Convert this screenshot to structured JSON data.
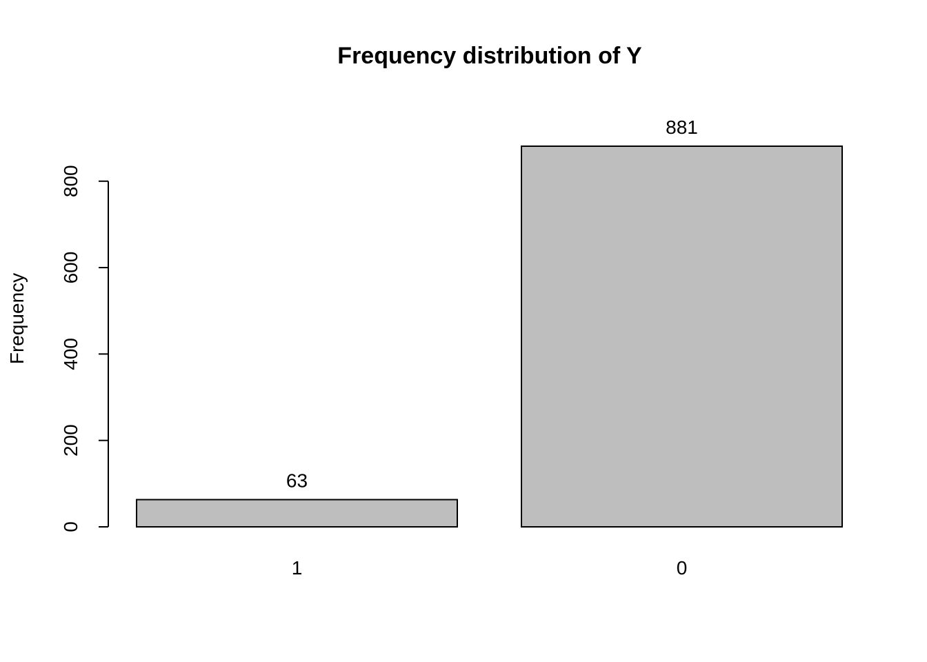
{
  "chart_data": {
    "type": "bar",
    "title": "Frequency distribution of Y",
    "xlabel": "",
    "ylabel": "Frequency",
    "categories": [
      "1",
      "0"
    ],
    "values": [
      63,
      881
    ],
    "data_labels": [
      "63",
      "881"
    ],
    "yticks": [
      0,
      200,
      400,
      600,
      800
    ],
    "ytick_labels": [
      "0",
      "200",
      "400",
      "600",
      "800"
    ],
    "ylim": [
      0,
      881
    ],
    "bar_color": "#bebebe",
    "border_color": "#000000",
    "grid": false,
    "legend": "none"
  }
}
